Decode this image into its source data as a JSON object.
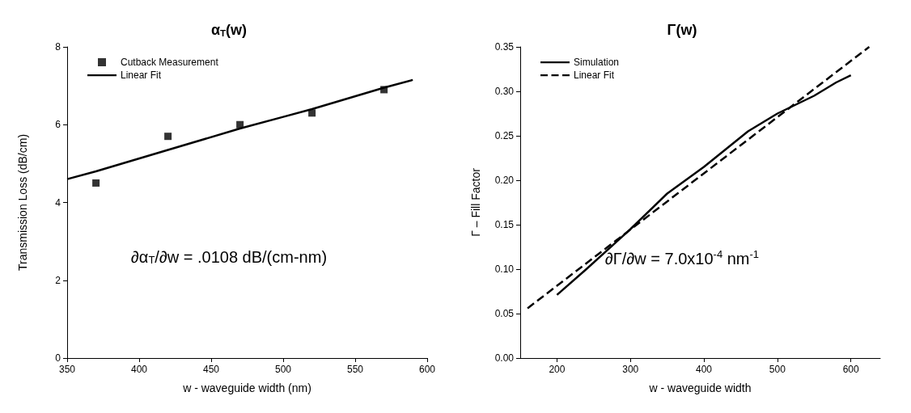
{
  "chart_data": [
    {
      "type": "scatter",
      "title": "α$_{T}$(w)",
      "xlabel": "w - waveguide width (nm)",
      "ylabel": "Transmission Loss (dB/cm)",
      "xlim": [
        350,
        600
      ],
      "xticks": [
        350,
        400,
        450,
        500,
        550,
        600
      ],
      "ylim": [
        0,
        8
      ],
      "yticks": [
        0,
        2,
        4,
        6,
        8
      ],
      "grid": false,
      "legend": "top left",
      "annotations": [
        "∂α$_{T}$/∂w = .0108 dB/(cm-nm)"
      ],
      "series": [
        {
          "name": "Cutback Measurement",
          "marker": "square",
          "color": "#000000",
          "x": [
            370,
            420,
            470,
            520,
            570
          ],
          "values": [
            4.5,
            5.7,
            6.0,
            6.3,
            6.9
          ]
        },
        {
          "name": "Linear Fit",
          "type": "line",
          "line_style": "solid",
          "color": "#000000",
          "x": [
            350,
            370,
            420,
            470,
            500,
            520,
            570,
            590
          ],
          "values": [
            4.6,
            4.8,
            5.35,
            5.9,
            6.2,
            6.4,
            6.95,
            7.15
          ]
        }
      ]
    },
    {
      "type": "line",
      "title": "Γ(w)",
      "xlabel": "w - waveguide width",
      "ylabel": "Γ – Fill Factor",
      "xlim": [
        150,
        640
      ],
      "xticks": [
        200,
        300,
        400,
        500,
        600
      ],
      "ylim": [
        0,
        0.35
      ],
      "yticks": [
        {
          "value": 0,
          "label": "0.00"
        },
        {
          "value": 0.05,
          "label": "0.05"
        },
        {
          "value": 0.1,
          "label": "0.10"
        },
        {
          "value": 0.15,
          "label": "0.15"
        },
        {
          "value": 0.2,
          "label": "0.20"
        },
        {
          "value": 0.25,
          "label": "0.25"
        },
        {
          "value": 0.3,
          "label": "0.30"
        },
        {
          "value": 0.35,
          "label": "0.35"
        }
      ],
      "grid": false,
      "legend": "top left",
      "annotations": [
        "∂Γ/∂w = 7.0x10$^{-4}$ nm$^{-1}$"
      ],
      "series": [
        {
          "name": "Simulation",
          "line_style": "solid",
          "color": "#000000",
          "x": [
            200,
            240,
            300,
            350,
            400,
            430,
            460,
            500,
            550,
            580,
            600
          ],
          "values": [
            0.071,
            0.1,
            0.145,
            0.185,
            0.215,
            0.235,
            0.255,
            0.275,
            0.295,
            0.31,
            0.318
          ]
        },
        {
          "name": "Linear Fit",
          "line_style": "dashed",
          "color": "#000000",
          "x": [
            160,
            625
          ],
          "values": [
            0.056,
            0.35
          ]
        }
      ]
    }
  ]
}
